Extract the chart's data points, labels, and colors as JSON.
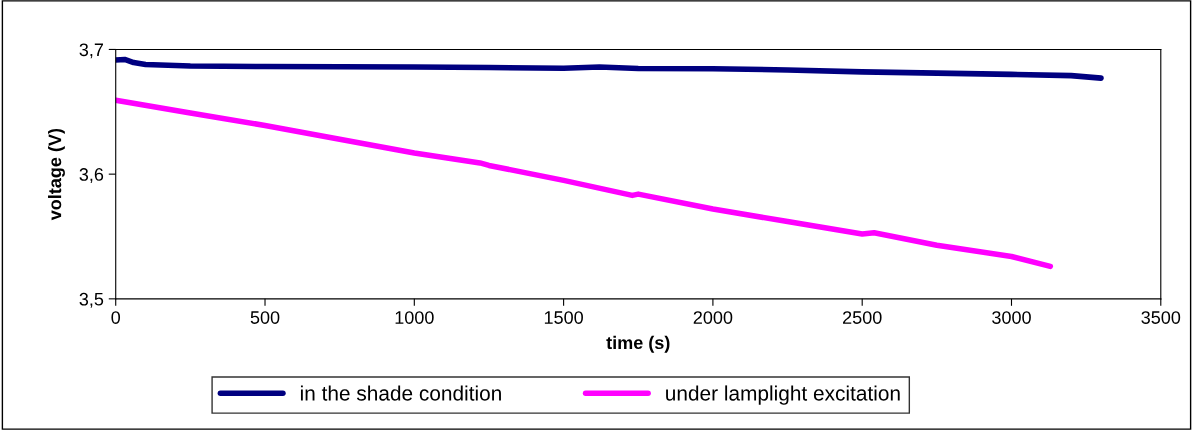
{
  "chart_data": {
    "type": "line",
    "xlabel": "time (s)",
    "ylabel": "voltage (V)",
    "xlim": [
      0,
      3500
    ],
    "xticks": [
      0,
      500,
      1000,
      1500,
      2000,
      2500,
      3000,
      3500
    ],
    "ylim": [
      3.5,
      3.7
    ],
    "yticks": [
      {
        "value": 3.5,
        "label": "3,5"
      },
      {
        "value": 3.6,
        "label": "3,6"
      },
      {
        "value": 3.7,
        "label": "3,7"
      }
    ],
    "grid": false,
    "legend": "bottom",
    "marker": "none",
    "line_style": "solid",
    "series": [
      {
        "name": "in the shade condition",
        "color": "#000080",
        "x": [
          0,
          30,
          60,
          100,
          250,
          500,
          750,
          1000,
          1250,
          1500,
          1620,
          1750,
          2000,
          2250,
          2500,
          2750,
          3000,
          3200,
          3300
        ],
        "values": [
          3.6916,
          3.692,
          3.6895,
          3.688,
          3.6868,
          3.6863,
          3.6862,
          3.686,
          3.6855,
          3.685,
          3.686,
          3.6848,
          3.6846,
          3.6835,
          3.682,
          3.681,
          3.68,
          3.679,
          3.677
        ]
      },
      {
        "name": "under lamplight excitation",
        "color": "#ff00ff",
        "x": [
          0,
          250,
          500,
          750,
          1000,
          1220,
          1250,
          1500,
          1730,
          1750,
          2000,
          2250,
          2500,
          2540,
          2750,
          3000,
          3130
        ],
        "values": [
          3.6593,
          3.649,
          3.639,
          3.628,
          3.617,
          3.609,
          3.607,
          3.595,
          3.583,
          3.584,
          3.572,
          3.562,
          3.552,
          3.553,
          3.543,
          3.534,
          3.526
        ]
      }
    ]
  }
}
